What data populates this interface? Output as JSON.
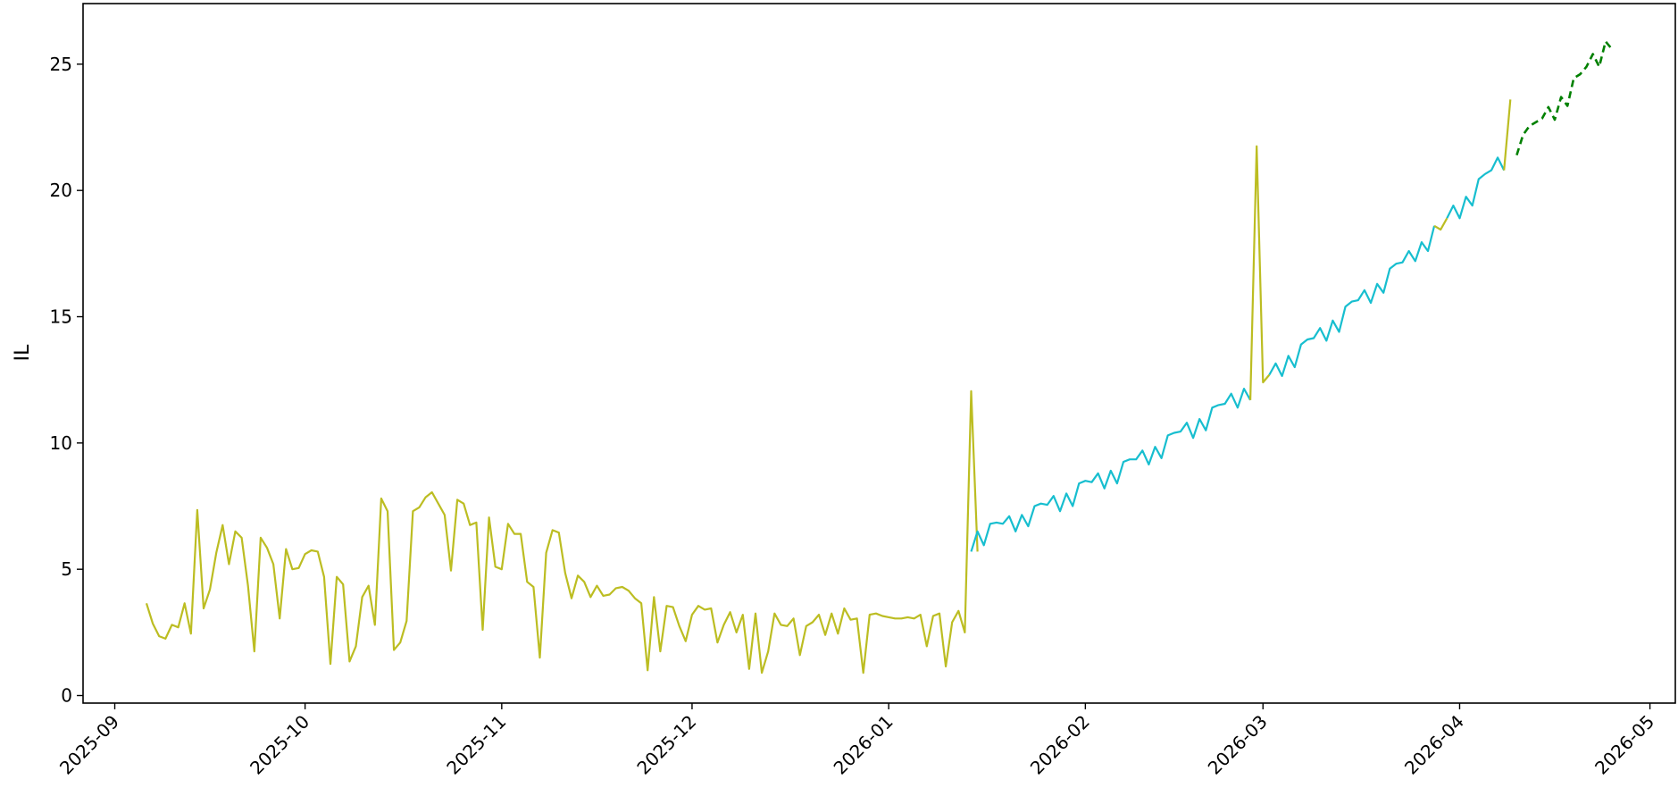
{
  "chart_data": {
    "type": "line",
    "title": "",
    "xlabel": "",
    "ylabel": "IL",
    "ylim": [
      -0.3,
      27.4
    ],
    "xlim": [
      "2025-08-27",
      "2026-05-05"
    ],
    "grid": false,
    "legend": "none",
    "yticks": [
      0,
      5,
      10,
      15,
      20,
      25
    ],
    "xticks": [
      "2025-09-01",
      "2025-10-01",
      "2025-11-01",
      "2025-12-01",
      "2026-01-01",
      "2026-02-01",
      "2026-03-01",
      "2026-04-01",
      "2026-05-01"
    ],
    "xtick_labels": [
      "2025-09",
      "2025-10",
      "2025-11",
      "2025-12",
      "2026-01",
      "2026-02",
      "2026-03",
      "2026-04",
      "2026-05"
    ],
    "colors": {
      "observed": "#bcbd22",
      "fitted": "#17becf",
      "forecast": "#008000"
    },
    "series": [
      {
        "style": "solid",
        "color": "#bcbd22",
        "start": "2025-09-06",
        "values": [
          3.65,
          2.85,
          2.35,
          2.25,
          2.8,
          2.7,
          3.65,
          2.45,
          7.35,
          3.45,
          4.2,
          5.65,
          6.75,
          5.2,
          6.5,
          6.25,
          4.35,
          1.75,
          6.25,
          5.85,
          5.2,
          3.05,
          5.8,
          5.0,
          5.05,
          5.6,
          5.75,
          5.7,
          4.7,
          1.25,
          4.7,
          4.4,
          1.35,
          1.95,
          3.9,
          4.35,
          2.8,
          7.8,
          7.3,
          1.8,
          2.1,
          2.95,
          7.3,
          7.45,
          7.85,
          8.05,
          7.6,
          7.15,
          4.95,
          7.75,
          7.6,
          6.75,
          6.85,
          2.6,
          7.05,
          5.1,
          5.0,
          6.8,
          6.4,
          6.4,
          4.5,
          4.3,
          1.5,
          5.65,
          6.55,
          6.45,
          4.85,
          3.85,
          4.75,
          4.5,
          3.9,
          4.35,
          3.95,
          4.0,
          4.25,
          4.3,
          4.15,
          3.85,
          3.65,
          1.0,
          3.9,
          1.75,
          3.55,
          3.5,
          2.75,
          2.15,
          3.2,
          3.55,
          3.4,
          3.45,
          2.1,
          2.8,
          3.3,
          2.5,
          3.2,
          1.05,
          3.25,
          0.9,
          1.75,
          3.25,
          2.8,
          2.75,
          3.05,
          1.6,
          2.75,
          2.9,
          3.2,
          2.4,
          3.25,
          2.45,
          3.45,
          3.0,
          3.05,
          0.9,
          3.2,
          3.25,
          3.15,
          3.1,
          3.05,
          3.05,
          3.1,
          3.05,
          3.2,
          1.95,
          3.15,
          3.25,
          1.15,
          2.9,
          3.35,
          2.5,
          12.05,
          5.7
        ]
      },
      {
        "style": "solid",
        "color": "#17becf",
        "start": "2026-01-14",
        "values": [
          5.7,
          6.5,
          5.95,
          6.8,
          6.85,
          6.8,
          7.1,
          6.5,
          7.15,
          6.7,
          7.5,
          7.6,
          7.55,
          7.9,
          7.3,
          8.0,
          7.5,
          8.4,
          8.5,
          8.45,
          8.8,
          8.2,
          8.9,
          8.4,
          9.25,
          9.35,
          9.35,
          9.7,
          9.15,
          9.85,
          9.4,
          10.3,
          10.4,
          10.45,
          10.8,
          10.2,
          10.95,
          10.5,
          11.4,
          11.5,
          11.55,
          11.95,
          11.4,
          12.15,
          11.7
        ]
      },
      {
        "style": "solid",
        "color": "#bcbd22",
        "start": "2026-02-27",
        "values": [
          11.7,
          21.75,
          12.4,
          12.7
        ]
      },
      {
        "style": "solid",
        "color": "#17becf",
        "start": "2026-03-02",
        "values": [
          12.7,
          13.15,
          12.65,
          13.45,
          13.0,
          13.9,
          14.1,
          14.15,
          14.55,
          14.05,
          14.85,
          14.4,
          15.4,
          15.6,
          15.65,
          16.05,
          15.55,
          16.3,
          15.95,
          16.9,
          17.1,
          17.15,
          17.6,
          17.2,
          17.95,
          17.6,
          18.6
        ]
      },
      {
        "style": "solid",
        "color": "#bcbd22",
        "start": "2026-03-28",
        "values": [
          18.6,
          18.45,
          18.9
        ]
      },
      {
        "style": "solid",
        "color": "#17becf",
        "start": "2026-03-30",
        "values": [
          18.9,
          19.4,
          18.9,
          19.75,
          19.4,
          20.45,
          20.65,
          20.8,
          21.3,
          20.8
        ]
      },
      {
        "style": "solid",
        "color": "#bcbd22",
        "start": "2026-04-08",
        "values": [
          20.8,
          23.6
        ]
      },
      {
        "style": "dashed",
        "color": "#008000",
        "start": "2026-04-10",
        "values": [
          21.4,
          22.2,
          22.55,
          22.7,
          22.85,
          23.3,
          22.8,
          23.7,
          23.35,
          24.45,
          24.6,
          24.9,
          25.4,
          24.9,
          25.9,
          25.6
        ]
      }
    ]
  }
}
